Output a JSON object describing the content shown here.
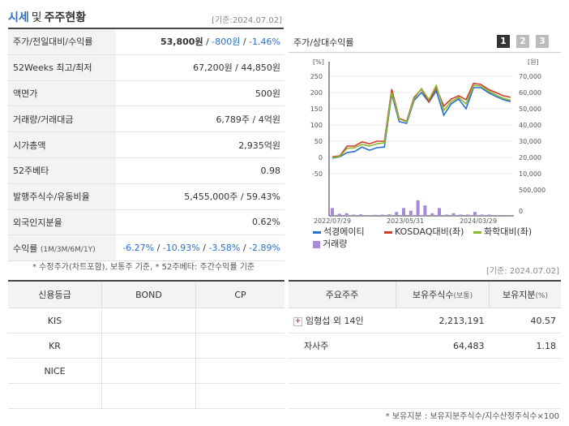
{
  "header": {
    "title_a": "시세",
    "title_sep": "및",
    "title_b": "주주현황",
    "date": "[기준:2024.07.02]"
  },
  "info_rows": [
    {
      "label": "주가/전일대비/수익률",
      "price": "53,800원",
      "change": "-800원",
      "rate": "-1.46%"
    },
    {
      "label": "52Weeks 최고/최저",
      "value": "67,200원 / 44,850원"
    },
    {
      "label": "액면가",
      "value": "500원"
    },
    {
      "label": "거래량/거래대금",
      "value": "6,789주 / 4억원"
    },
    {
      "label": "시가총액",
      "value": "2,935억원"
    },
    {
      "label": "52주베타",
      "value": "0.98"
    },
    {
      "label": "발행주식수/유동비율",
      "value": "5,455,000주 / 59.43%"
    },
    {
      "label": "외국인지분율",
      "value": "0.62%"
    },
    {
      "label": "수익률",
      "label_small": "(1M/3M/6M/1Y)",
      "returns": [
        "-6.27%",
        "-10.93%",
        "-3.58%",
        "-2.89%"
      ]
    }
  ],
  "note1": "* 수정주가(차트포함), 보통주 기준, * 52주베타: 주간수익률 기준",
  "chart_panel": {
    "title": "주가/상대수익률",
    "pages": [
      "1",
      "2",
      "3"
    ],
    "left_unit": "[%]",
    "right_unit": "[원]"
  },
  "chart_data": {
    "type": "line",
    "x_ticks": [
      "2022/07/29",
      "2023/05/31",
      "2024/03/29"
    ],
    "y_left_ticks": [
      "250",
      "200",
      "150",
      "100",
      "50",
      "0",
      "-50"
    ],
    "y_right_ticks": [
      "70,000",
      "60,000",
      "50,000",
      "40,000",
      "30,000",
      "20,000",
      "10,000"
    ],
    "y_vol_ticks": [
      "500,000",
      "0"
    ],
    "ylim_left": [
      -50,
      250
    ],
    "series": [
      {
        "name": "석경에이티",
        "color": "#2a6fc9",
        "values": [
          -2,
          2,
          15,
          18,
          32,
          22,
          30,
          32,
          195,
          110,
          105,
          175,
          200,
          170,
          205,
          130,
          165,
          180,
          150,
          215,
          215,
          200,
          188,
          178,
          172
        ]
      },
      {
        "name": "KOSDAQ대비(좌)",
        "color": "#d23b2b",
        "values": [
          2,
          5,
          35,
          35,
          48,
          42,
          50,
          50,
          210,
          120,
          112,
          185,
          210,
          172,
          215,
          158,
          180,
          190,
          178,
          228,
          225,
          210,
          200,
          190,
          185
        ]
      },
      {
        "name": "화학대비(좌)",
        "color": "#8ab82e",
        "values": [
          0,
          3,
          28,
          30,
          40,
          35,
          42,
          45,
          200,
          118,
          110,
          180,
          212,
          178,
          222,
          145,
          172,
          185,
          165,
          222,
          220,
          205,
          193,
          182,
          176
        ]
      }
    ],
    "volume": {
      "name": "거래량",
      "color": "#a98ad8",
      "values": [
        0.3,
        0.08,
        0.1,
        0.05,
        0.06,
        0.03,
        0.04,
        0.05,
        0.06,
        0.15,
        0.3,
        0.2,
        0.6,
        0.4,
        0.1,
        0.3,
        0.05,
        0.1,
        0.05,
        0.05,
        0.15,
        0.05,
        0.05,
        0.03,
        0.02,
        0.02
      ]
    }
  },
  "date2": "[기준: 2024.07.02]",
  "credit": {
    "headers": [
      "신용등급",
      "BOND",
      "CP"
    ],
    "rows": [
      "KIS",
      "KR",
      "NICE",
      ""
    ]
  },
  "holders": {
    "headers": [
      "주요주주",
      "보유주식수",
      "(보통)",
      "보유지분",
      "(%)"
    ],
    "rows": [
      {
        "name": "임형섭 외 14인",
        "shares": "2,213,191",
        "pct": "40.57",
        "expand": "+"
      },
      {
        "name": "자사주",
        "shares": "64,483",
        "pct": "1.18"
      }
    ]
  },
  "note2": "* 보유지분 : 보유지분주식수/지수산정주식수×100"
}
